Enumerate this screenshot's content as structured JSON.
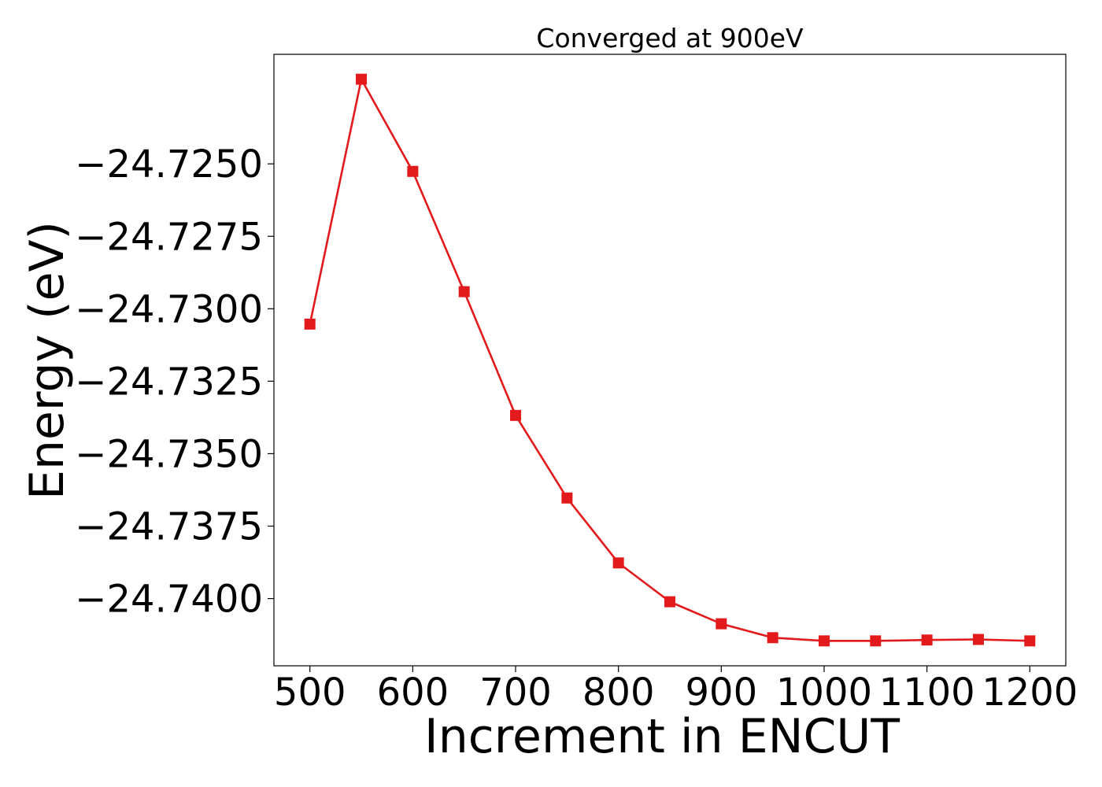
{
  "chart_data": {
    "type": "line",
    "title": "Converged at 900eV",
    "xlabel": "Increment in ENCUT",
    "ylabel": "Energy (eV)",
    "x": [
      500,
      550,
      600,
      650,
      700,
      750,
      800,
      850,
      900,
      950,
      1000,
      1050,
      1100,
      1150,
      1200
    ],
    "series": [
      {
        "values": [
          -24.73053,
          -24.72208,
          -24.72526,
          -24.72941,
          -24.73368,
          -24.73653,
          -24.73877,
          -24.74011,
          -24.74087,
          -24.74135,
          -24.74146,
          -24.74146,
          -24.74143,
          -24.74141,
          -24.74146
        ],
        "color": "#e31a1c",
        "marker": "square"
      }
    ],
    "xticks": [
      500,
      600,
      700,
      800,
      900,
      1000,
      1100,
      1200
    ],
    "xtick_labels": [
      "500",
      "600",
      "700",
      "800",
      "900",
      "1000",
      "1100",
      "1200"
    ],
    "yticks": [
      -24.725,
      -24.7275,
      -24.73,
      -24.7325,
      -24.735,
      -24.7375,
      -24.74
    ],
    "ytick_labels": [
      "−24.7250",
      "−24.7275",
      "−24.7300",
      "−24.7325",
      "−24.7350",
      "−24.7375",
      "−24.7400"
    ],
    "xlim": [
      465,
      1235
    ],
    "ylim": [
      -24.74232,
      -24.72122
    ],
    "grid": false,
    "legend": "none"
  }
}
